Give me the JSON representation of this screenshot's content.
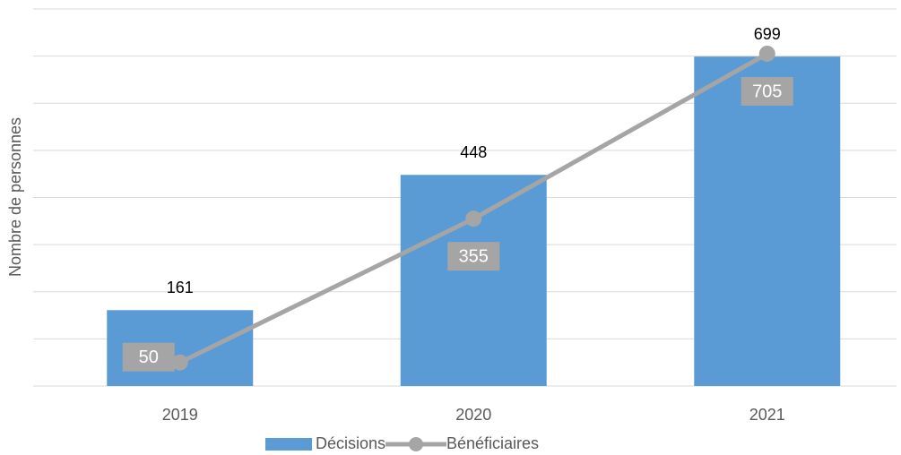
{
  "chart_data": {
    "type": "bar_line",
    "y_label": "Nombre de personnes",
    "categories": [
      "2019",
      "2020",
      "2021"
    ],
    "series": [
      {
        "name": "Décisions",
        "type": "bar",
        "color": "#5b9bd5",
        "values": [
          161,
          448,
          699
        ]
      },
      {
        "name": "Bénéficiaires",
        "type": "line",
        "color": "#a5a5a5",
        "values": [
          50,
          355,
          705
        ]
      }
    ],
    "ylim": [
      0,
      800
    ],
    "yticks": [
      0,
      100,
      200,
      300,
      400,
      500,
      600,
      700,
      800
    ],
    "grid": true
  }
}
